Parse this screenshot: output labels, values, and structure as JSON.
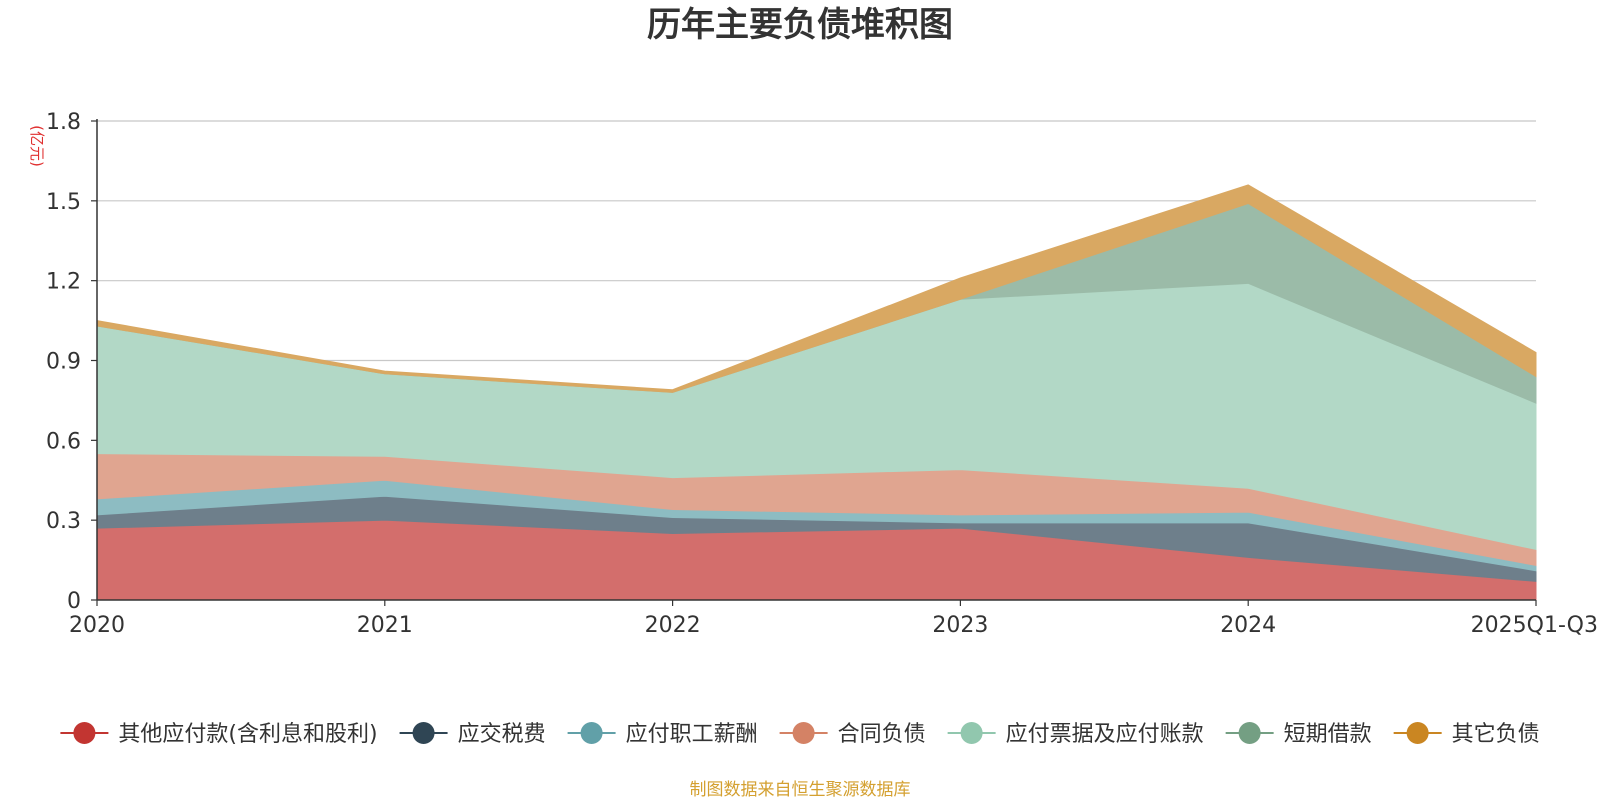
{
  "chart_data": {
    "type": "area",
    "stacked": true,
    "title": "历年主要负债堆积图",
    "unit_label": "(亿元)",
    "xlabel": "",
    "ylabel": "(亿元)",
    "ylim": [
      0,
      1.8
    ],
    "yticks": [
      "0",
      "0.3",
      "0.6",
      "0.9",
      "1.2",
      "1.5",
      "1.8"
    ],
    "ytick_values": [
      0,
      0.3,
      0.6,
      0.9,
      1.2,
      1.5,
      1.8
    ],
    "categories": [
      "2020",
      "2021",
      "2022",
      "2023",
      "2024",
      "2025Q1-Q3"
    ],
    "grid": true,
    "legend_position": "bottom",
    "series": [
      {
        "name": "其他应付款(含利息和股利)",
        "color": "#d36e6c",
        "legend_color": "#c23531",
        "values": [
          0.27,
          0.3,
          0.25,
          0.27,
          0.16,
          0.07
        ]
      },
      {
        "name": "应交税费",
        "color": "#6e7f8b",
        "legend_color": "#2f4554",
        "values": [
          0.05,
          0.09,
          0.06,
          0.02,
          0.13,
          0.04
        ]
      },
      {
        "name": "应付职工薪酬",
        "color": "#8dbcc2",
        "legend_color": "#61a0a8",
        "values": [
          0.06,
          0.06,
          0.03,
          0.03,
          0.04,
          0.02
        ]
      },
      {
        "name": "合同负债",
        "color": "#e0a590",
        "legend_color": "#d48265",
        "values": [
          0.17,
          0.09,
          0.12,
          0.17,
          0.09,
          0.06
        ]
      },
      {
        "name": "应付票据及应付账款",
        "color": "#b2d8c6",
        "legend_color": "#91c7ae",
        "values": [
          0.48,
          0.31,
          0.32,
          0.64,
          0.77,
          0.55
        ]
      },
      {
        "name": "短期借款",
        "color": "#9bbba8",
        "legend_color": "#749f83",
        "values": [
          0,
          0,
          0,
          0,
          0.3,
          0.1
        ]
      },
      {
        "name": "其它负债",
        "color": "#d9a862",
        "legend_color": "#ca8622",
        "values": [
          0.02,
          0.01,
          0.01,
          0.08,
          0.07,
          0.09
        ]
      }
    ]
  },
  "footer": {
    "source": "制图数据来自恒生聚源数据库"
  }
}
